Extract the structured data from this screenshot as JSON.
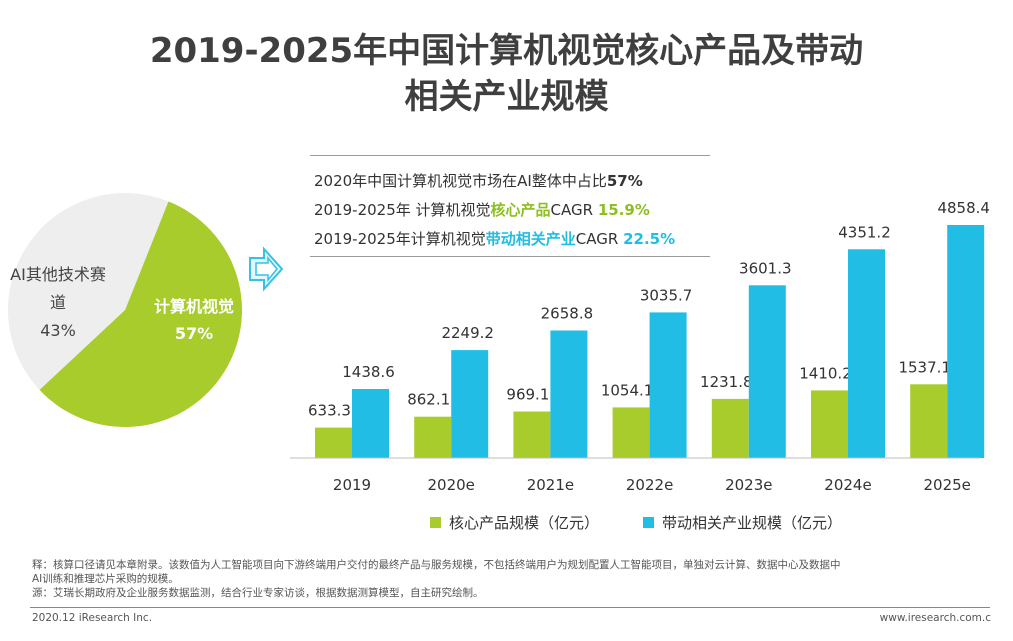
{
  "title": {
    "line1": "2019-2025年中国计算机视觉核心产品及带动",
    "line2": "相关产业规模"
  },
  "pie": {
    "slices": [
      {
        "label": "计算机视觉",
        "value": "57%",
        "share": 57,
        "color": "#a8cc2c"
      },
      {
        "label_line1": "AI其他技术赛",
        "label_line2": "道",
        "value": "43%",
        "share": 43,
        "color": "#eeeeee"
      }
    ]
  },
  "info": {
    "line1_text": "2020年中国计算机视觉市场在AI整体中占比",
    "line1_value": "57%",
    "line2_text": "2019-2025年 计算机视觉",
    "line2_highlight": "核心产品",
    "line2_suffix": "CAGR ",
    "line2_value": "15.9%",
    "line3_text": "2019-2025年计算机视觉",
    "line3_highlight": "带动相关产业",
    "line3_suffix": "CAGR ",
    "line3_value": "22.5%"
  },
  "colors": {
    "core": "#a8cc2c",
    "related": "#22bde4",
    "green_text": "#8cbf1f",
    "blue_text": "#22bde4"
  },
  "chart_data": {
    "type": "bar",
    "categories": [
      "2019",
      "2020e",
      "2021e",
      "2022e",
      "2023e",
      "2024e",
      "2025e"
    ],
    "series": [
      {
        "name": "核心产品规模（亿元）",
        "values": [
          633.3,
          862.1,
          969.1,
          1054.1,
          1231.8,
          1410.2,
          1537.1
        ]
      },
      {
        "name": "带动相关产业规模（亿元）",
        "values": [
          1438.6,
          2249.2,
          2658.8,
          3035.7,
          3601.3,
          4351.2,
          4858.4
        ]
      }
    ],
    "ylim": [
      0,
      4858.4
    ],
    "grid": false,
    "legend_position": "bottom",
    "xlabel": "",
    "ylabel": ""
  },
  "notes": {
    "line1": "释：核算口径请见本章附录。该数值为人工智能项目向下游终端用户交付的最终产品与服务规模，不包括终端用户为规划配置人工智能项目，单独对云计算、数据中心及数据中",
    "line2": "AI训练和推理芯片采购的规模。",
    "line3": "源：艾瑞长期政府及企业服务数据监测，结合行业专家访谈，根据数据测算模型，自主研究绘制。"
  },
  "footer": {
    "left": "2020.12 iResearch Inc.",
    "right": "www.iresearch.com.c"
  }
}
